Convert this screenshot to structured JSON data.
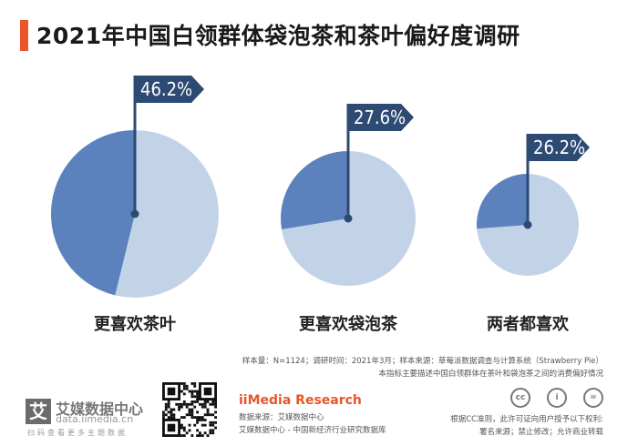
{
  "header": {
    "title": "2021年中国白领群体袋泡茶和茶叶偏好度调研"
  },
  "chart_data": {
    "type": "pie",
    "title": "2021年中国白领群体袋泡茶和茶叶偏好度调研",
    "categories": [
      "更喜欢茶叶",
      "更喜欢袋泡茶",
      "两者都喜欢"
    ],
    "values": [
      46.2,
      27.6,
      26.2
    ],
    "value_labels": [
      "46.2%",
      "27.6%",
      "26.2%"
    ],
    "colors": {
      "fill": "#5b82bd",
      "track": "#c3d3e7",
      "flag": "#2d4a73",
      "pole": "#2d4a73"
    }
  },
  "notes": {
    "line1": "样本量：N=1124；调研时间：2021年3月；样本来源：草莓派数据调查与计算系统（Strawberry Pie）",
    "line2": "本指标主要描述中国白领群体在茶叶和袋泡茶之间的消费偏好情况"
  },
  "footer": {
    "logo_char": "艾",
    "logo_name": "艾媒数据中心",
    "logo_url": "data.iimedia.cn",
    "logo_tag": "扫码查看更多主题数据",
    "brand": "iiMedia Research",
    "source_line": "数据来源：艾媒数据中心",
    "db_line": "艾媒数据中心 - 中国新经济行业研究数据库",
    "cc_icons": [
      "cc-icon",
      "by-icon",
      "nd-icon"
    ],
    "cc_symbols": [
      "cc",
      "i",
      "="
    ],
    "license_line1": "根据CC准则，此许可证向用户授予以下权利:",
    "license_line2": "署名来源；禁止修改；允许商业转载"
  }
}
